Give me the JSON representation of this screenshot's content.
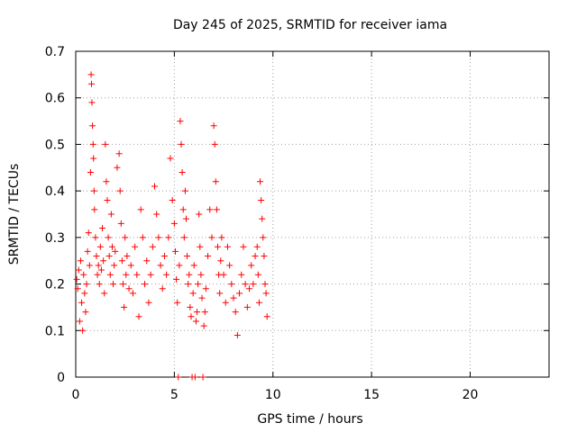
{
  "chart_data": {
    "type": "scatter",
    "title": "Day 245 of 2025, SRMTID for receiver iama",
    "xlabel": "GPS time / hours",
    "ylabel": "SRMTID / TECUs",
    "xlim": [
      0,
      24
    ],
    "ylim": [
      0,
      0.7
    ],
    "x_ticks": [
      0,
      5,
      10,
      15,
      20
    ],
    "x_tick_labels": [
      "0",
      "5",
      "10",
      "15",
      "20"
    ],
    "y_ticks": [
      0,
      0.1,
      0.2,
      0.3,
      0.4,
      0.5,
      0.6,
      0.7
    ],
    "y_tick_labels": [
      "0",
      "0.1",
      "0.2",
      "0.3",
      "0.4",
      "0.5",
      "0.6",
      "0.7"
    ],
    "grid": true,
    "marker": "+",
    "series": [
      {
        "name": "SRMTID",
        "color": "#ff0000",
        "points": [
          [
            0.05,
            0.21
          ],
          [
            0.1,
            0.19
          ],
          [
            0.15,
            0.23
          ],
          [
            0.2,
            0.12
          ],
          [
            0.25,
            0.25
          ],
          [
            0.3,
            0.16
          ],
          [
            0.35,
            0.1
          ],
          [
            0.4,
            0.22
          ],
          [
            0.45,
            0.18
          ],
          [
            0.5,
            0.14
          ],
          [
            0.55,
            0.2
          ],
          [
            0.6,
            0.27
          ],
          [
            0.65,
            0.31
          ],
          [
            0.7,
            0.24
          ],
          [
            0.75,
            0.44
          ],
          [
            0.78,
            0.65
          ],
          [
            0.8,
            0.63
          ],
          [
            0.82,
            0.59
          ],
          [
            0.85,
            0.54
          ],
          [
            0.88,
            0.5
          ],
          [
            0.9,
            0.47
          ],
          [
            0.93,
            0.4
          ],
          [
            0.95,
            0.36
          ],
          [
            1.0,
            0.3
          ],
          [
            1.05,
            0.26
          ],
          [
            1.1,
            0.22
          ],
          [
            1.15,
            0.24
          ],
          [
            1.2,
            0.2
          ],
          [
            1.25,
            0.28
          ],
          [
            1.3,
            0.23
          ],
          [
            1.35,
            0.32
          ],
          [
            1.4,
            0.25
          ],
          [
            1.45,
            0.18
          ],
          [
            1.5,
            0.5
          ],
          [
            1.55,
            0.42
          ],
          [
            1.6,
            0.38
          ],
          [
            1.65,
            0.3
          ],
          [
            1.7,
            0.26
          ],
          [
            1.75,
            0.22
          ],
          [
            1.8,
            0.35
          ],
          [
            1.85,
            0.28
          ],
          [
            1.9,
            0.2
          ],
          [
            1.95,
            0.24
          ],
          [
            2.0,
            0.27
          ],
          [
            2.1,
            0.45
          ],
          [
            2.2,
            0.48
          ],
          [
            2.25,
            0.4
          ],
          [
            2.3,
            0.33
          ],
          [
            2.35,
            0.25
          ],
          [
            2.4,
            0.2
          ],
          [
            2.45,
            0.15
          ],
          [
            2.5,
            0.3
          ],
          [
            2.55,
            0.22
          ],
          [
            2.6,
            0.26
          ],
          [
            2.7,
            0.19
          ],
          [
            2.8,
            0.24
          ],
          [
            2.9,
            0.18
          ],
          [
            3.0,
            0.28
          ],
          [
            3.1,
            0.22
          ],
          [
            3.2,
            0.13
          ],
          [
            3.3,
            0.36
          ],
          [
            3.4,
            0.3
          ],
          [
            3.5,
            0.2
          ],
          [
            3.6,
            0.25
          ],
          [
            3.7,
            0.16
          ],
          [
            3.8,
            0.22
          ],
          [
            3.9,
            0.28
          ],
          [
            4.0,
            0.41
          ],
          [
            4.1,
            0.35
          ],
          [
            4.2,
            0.3
          ],
          [
            4.3,
            0.24
          ],
          [
            4.4,
            0.19
          ],
          [
            4.5,
            0.26
          ],
          [
            4.6,
            0.22
          ],
          [
            4.7,
            0.3
          ],
          [
            4.8,
            0.47
          ],
          [
            4.9,
            0.38
          ],
          [
            5.0,
            0.33
          ],
          [
            5.05,
            0.27
          ],
          [
            5.1,
            0.21
          ],
          [
            5.15,
            0.16
          ],
          [
            5.2,
            0.0
          ],
          [
            5.25,
            0.24
          ],
          [
            5.3,
            0.55
          ],
          [
            5.35,
            0.5
          ],
          [
            5.4,
            0.44
          ],
          [
            5.45,
            0.36
          ],
          [
            5.5,
            0.3
          ],
          [
            5.55,
            0.4
          ],
          [
            5.6,
            0.34
          ],
          [
            5.65,
            0.26
          ],
          [
            5.7,
            0.2
          ],
          [
            5.75,
            0.22
          ],
          [
            5.8,
            0.15
          ],
          [
            5.85,
            0.13
          ],
          [
            5.9,
            0.0
          ],
          [
            5.95,
            0.18
          ],
          [
            6.0,
            0.24
          ],
          [
            6.05,
            0.0
          ],
          [
            6.1,
            0.12
          ],
          [
            6.15,
            0.14
          ],
          [
            6.2,
            0.2
          ],
          [
            6.25,
            0.35
          ],
          [
            6.3,
            0.28
          ],
          [
            6.35,
            0.22
          ],
          [
            6.4,
            0.17
          ],
          [
            6.45,
            0.0
          ],
          [
            6.5,
            0.11
          ],
          [
            6.55,
            0.14
          ],
          [
            6.6,
            0.19
          ],
          [
            6.7,
            0.26
          ],
          [
            6.8,
            0.36
          ],
          [
            6.9,
            0.3
          ],
          [
            7.0,
            0.54
          ],
          [
            7.05,
            0.5
          ],
          [
            7.1,
            0.42
          ],
          [
            7.15,
            0.36
          ],
          [
            7.2,
            0.28
          ],
          [
            7.25,
            0.22
          ],
          [
            7.3,
            0.18
          ],
          [
            7.35,
            0.25
          ],
          [
            7.4,
            0.3
          ],
          [
            7.5,
            0.22
          ],
          [
            7.6,
            0.16
          ],
          [
            7.7,
            0.28
          ],
          [
            7.8,
            0.24
          ],
          [
            7.9,
            0.2
          ],
          [
            8.0,
            0.17
          ],
          [
            8.1,
            0.14
          ],
          [
            8.2,
            0.09
          ],
          [
            8.3,
            0.18
          ],
          [
            8.4,
            0.22
          ],
          [
            8.5,
            0.28
          ],
          [
            8.6,
            0.2
          ],
          [
            8.7,
            0.15
          ],
          [
            8.8,
            0.19
          ],
          [
            8.9,
            0.24
          ],
          [
            9.0,
            0.2
          ],
          [
            9.1,
            0.26
          ],
          [
            9.2,
            0.28
          ],
          [
            9.25,
            0.22
          ],
          [
            9.3,
            0.16
          ],
          [
            9.35,
            0.42
          ],
          [
            9.4,
            0.38
          ],
          [
            9.45,
            0.34
          ],
          [
            9.5,
            0.3
          ],
          [
            9.55,
            0.26
          ],
          [
            9.6,
            0.2
          ],
          [
            9.65,
            0.18
          ],
          [
            9.7,
            0.13
          ]
        ]
      }
    ]
  }
}
